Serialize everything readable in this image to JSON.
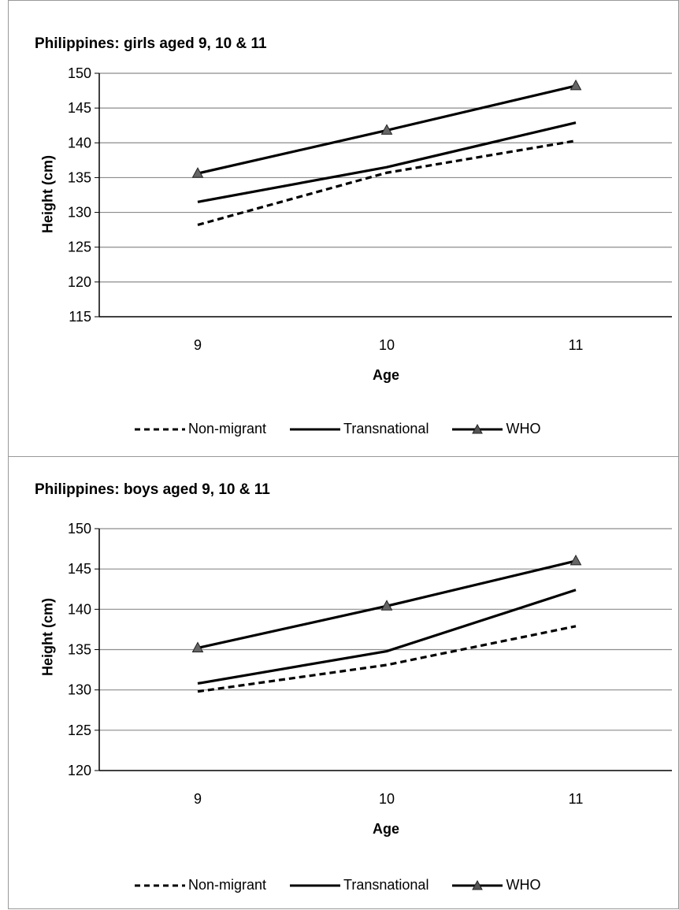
{
  "chart_data": [
    {
      "type": "line",
      "title": "Philippines: girls aged 9, 10 & 11",
      "xlabel": "Age",
      "ylabel": "Height (cm)",
      "categories": [
        "9",
        "10",
        "11"
      ],
      "ylim": [
        115,
        150
      ],
      "yticks": [
        "115",
        "120",
        "125",
        "130",
        "135",
        "140",
        "145",
        "150"
      ],
      "grid": true,
      "legend": "bottom",
      "series": [
        {
          "name": "Non-migrant",
          "values": [
            128.2,
            135.7,
            140.3
          ]
        },
        {
          "name": "Transnational",
          "values": [
            131.5,
            136.5,
            142.9
          ]
        },
        {
          "name": "WHO",
          "values": [
            135.6,
            141.8,
            148.2
          ]
        }
      ]
    },
    {
      "type": "line",
      "title": "Philippines: boys aged 9, 10 & 11",
      "xlabel": "Age",
      "ylabel": "Height (cm)",
      "categories": [
        "9",
        "10",
        "11"
      ],
      "ylim": [
        120,
        150
      ],
      "yticks": [
        "120",
        "125",
        "130",
        "135",
        "140",
        "145",
        "150"
      ],
      "grid": true,
      "legend": "bottom",
      "series": [
        {
          "name": "Non-migrant",
          "values": [
            129.8,
            133.1,
            137.9
          ]
        },
        {
          "name": "Transnational",
          "values": [
            130.8,
            134.8,
            142.4
          ]
        },
        {
          "name": "WHO",
          "values": [
            135.2,
            140.4,
            146.0
          ]
        }
      ]
    }
  ]
}
